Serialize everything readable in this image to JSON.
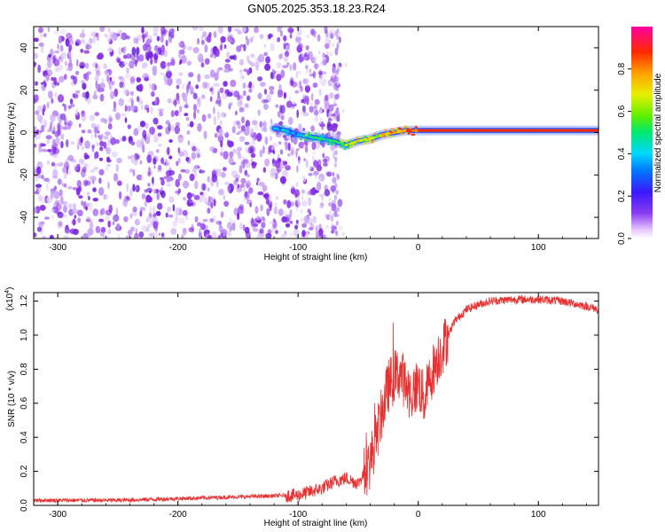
{
  "title": "GN05.2025.353.18.23.R24",
  "colors": {
    "snr_line": "#e83030",
    "spec_low": "#7b2fe0",
    "spec_mid": "#19c8ff",
    "spec_high": "#ff1010"
  },
  "chart_data": [
    {
      "type": "heatmap",
      "title": "GN05.2025.353.18.23.R24",
      "xlabel": "Height of straight line (km)",
      "ylabel": "Frequency (Hz)",
      "xlim": [
        -320,
        150
      ],
      "ylim": [
        -50,
        50
      ],
      "x_ticks": [
        "-300",
        "-200",
        "-100",
        "0",
        "100"
      ],
      "y_ticks": [
        "-40",
        "-20",
        "0",
        "20",
        "40"
      ],
      "colorbar": {
        "label": "Normalized spectral amplitude",
        "range": [
          0,
          1
        ],
        "ticks": [
          "0.0",
          "0.2",
          "0.4",
          "0.6",
          "0.8"
        ],
        "colormap": "rainbow (magenta-white to violet, blue, cyan, green, yellow, orange, red)"
      },
      "ridge": {
        "x": [
          -120,
          -110,
          -100,
          -90,
          -80,
          -70,
          -60,
          -50,
          -40,
          -30,
          -20,
          -10,
          0,
          50,
          100,
          150
        ],
        "frequency": [
          2,
          1,
          -1,
          -2,
          -3,
          -4,
          -6,
          -4,
          -3,
          -1,
          0,
          1,
          1,
          1,
          1,
          1
        ],
        "amplitude": [
          0.3,
          0.4,
          0.45,
          0.5,
          0.5,
          0.55,
          0.6,
          0.65,
          0.7,
          0.75,
          0.8,
          0.85,
          0.9,
          0.95,
          0.95,
          0.95
        ]
      },
      "noise_region_x": [
        -320,
        -65
      ],
      "grid": false
    },
    {
      "type": "line",
      "xlabel": "Height of straight line (km)",
      "ylabel": "SNR (10 * v/v)",
      "y_multiplier": "(x10^4)",
      "y_multiplier_base": "(x10",
      "y_multiplier_exp": "4",
      "y_multiplier_close": ")",
      "xlim": [
        -320,
        150
      ],
      "ylim": [
        0,
        1.25
      ],
      "x_ticks": [
        "-300",
        "-200",
        "-100",
        "0",
        "100"
      ],
      "y_ticks": [
        "0.0",
        "0.2",
        "0.4",
        "0.6",
        "0.8",
        "1.0",
        "1.2"
      ],
      "series": [
        {
          "x": [
            -320,
            -250,
            -200,
            -150,
            -100,
            -80,
            -70,
            -60,
            -50,
            -40,
            -35,
            -30,
            -25,
            -20,
            -15,
            -10,
            -5,
            0,
            5,
            10,
            15,
            20,
            25,
            30,
            40,
            50,
            60,
            80,
            100,
            120,
            140,
            150
          ],
          "y": [
            0.03,
            0.03,
            0.04,
            0.05,
            0.06,
            0.1,
            0.14,
            0.16,
            0.13,
            0.25,
            0.4,
            0.55,
            0.7,
            0.75,
            0.78,
            0.7,
            0.65,
            0.72,
            0.62,
            0.75,
            0.85,
            0.92,
            1.0,
            1.08,
            1.15,
            1.18,
            1.2,
            1.21,
            1.21,
            1.2,
            1.17,
            1.15
          ]
        }
      ],
      "grid": false
    }
  ]
}
